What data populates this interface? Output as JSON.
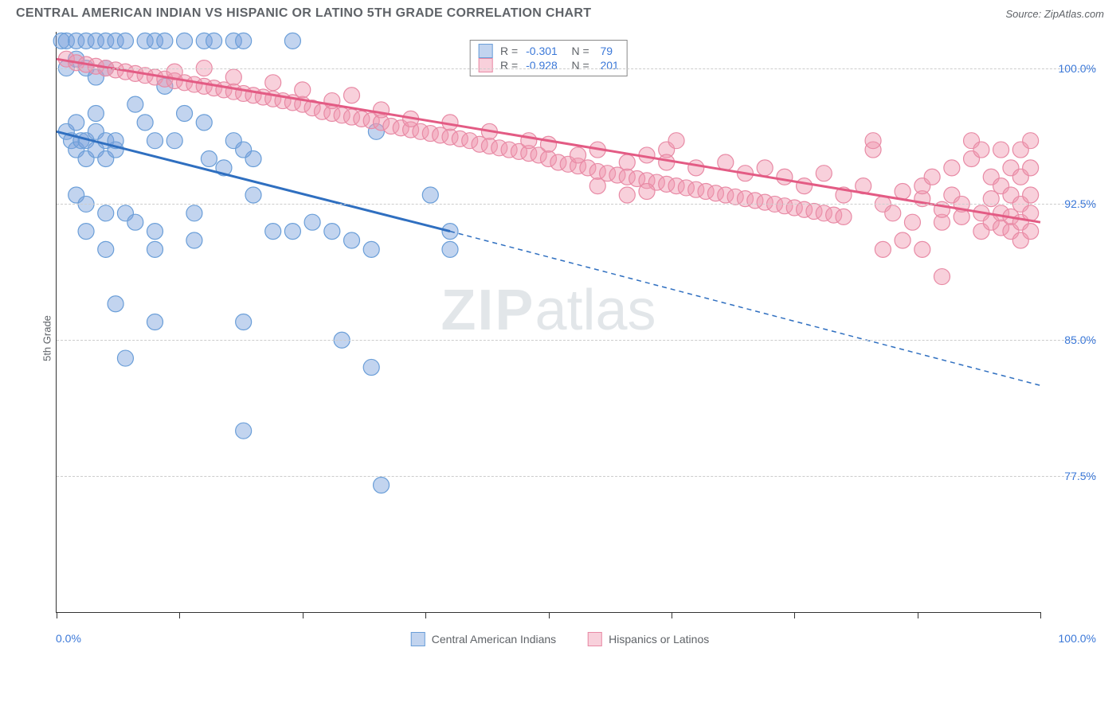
{
  "header": {
    "title": "CENTRAL AMERICAN INDIAN VS HISPANIC OR LATINO 5TH GRADE CORRELATION CHART",
    "source": "Source: ZipAtlas.com"
  },
  "chart": {
    "type": "scatter",
    "ylabel": "5th Grade",
    "xlim": [
      0,
      100
    ],
    "ylim": [
      70,
      102
    ],
    "xtick_positions": [
      0,
      12.5,
      25,
      37.5,
      50,
      62.5,
      75,
      87.5,
      100
    ],
    "xaxis_label_left": "0.0%",
    "xaxis_label_right": "100.0%",
    "yticks": [
      {
        "value": 100.0,
        "label": "100.0%"
      },
      {
        "value": 92.5,
        "label": "92.5%"
      },
      {
        "value": 85.0,
        "label": "85.0%"
      },
      {
        "value": 77.5,
        "label": "77.5%"
      }
    ],
    "grid_color": "#cccccc",
    "axis_color": "#333333",
    "background_color": "#ffffff",
    "watermark": {
      "text_bold": "ZIP",
      "text_light": "atlas"
    },
    "series": [
      {
        "name": "Central American Indians",
        "color_fill": "rgba(120,160,220,0.45)",
        "color_stroke": "#6a9ed8",
        "line_color": "#2f6fc0",
        "marker_radius": 10,
        "trend": {
          "x1": 0,
          "y1": 96.5,
          "x2": 40,
          "y2": 91.0,
          "x2_ext": 100,
          "y2_ext": 82.5
        },
        "points": [
          [
            0.5,
            101.5
          ],
          [
            1,
            101.5
          ],
          [
            2,
            101.5
          ],
          [
            3,
            101.5
          ],
          [
            4,
            101.5
          ],
          [
            5,
            101.5
          ],
          [
            6,
            101.5
          ],
          [
            7,
            101.5
          ],
          [
            9,
            101.5
          ],
          [
            10,
            101.5
          ],
          [
            11,
            101.5
          ],
          [
            13,
            101.5
          ],
          [
            15,
            101.5
          ],
          [
            16,
            101.5
          ],
          [
            18,
            101.5
          ],
          [
            19,
            101.5
          ],
          [
            24,
            101.5
          ],
          [
            1,
            96.5
          ],
          [
            1.5,
            96
          ],
          [
            2,
            95.5
          ],
          [
            2.5,
            96
          ],
          [
            3,
            95
          ],
          [
            3,
            96
          ],
          [
            4,
            95.5
          ],
          [
            4,
            96.5
          ],
          [
            5,
            96
          ],
          [
            5,
            95
          ],
          [
            6,
            95.5
          ],
          [
            6,
            96
          ],
          [
            2,
            97
          ],
          [
            4,
            97.5
          ],
          [
            1,
            100
          ],
          [
            2,
            100.5
          ],
          [
            3,
            100
          ],
          [
            4,
            99.5
          ],
          [
            5,
            100
          ],
          [
            8,
            98
          ],
          [
            9,
            97
          ],
          [
            10,
            96
          ],
          [
            11,
            99
          ],
          [
            12,
            96
          ],
          [
            13,
            97.5
          ],
          [
            15,
            97
          ],
          [
            15.5,
            95
          ],
          [
            17,
            94.5
          ],
          [
            18,
            96
          ],
          [
            20,
            95
          ],
          [
            2,
            93
          ],
          [
            3,
            92.5
          ],
          [
            5,
            92
          ],
          [
            7,
            92
          ],
          [
            8,
            91.5
          ],
          [
            10,
            91
          ],
          [
            14,
            92
          ],
          [
            19,
            95.5
          ],
          [
            20,
            93
          ],
          [
            5,
            90
          ],
          [
            10,
            90
          ],
          [
            14,
            90.5
          ],
          [
            22,
            91
          ],
          [
            24,
            91
          ],
          [
            26,
            91.5
          ],
          [
            28,
            91
          ],
          [
            30,
            90.5
          ],
          [
            32,
            90
          ],
          [
            32.5,
            96.5
          ],
          [
            3,
            91
          ],
          [
            38,
            93
          ],
          [
            40,
            90
          ],
          [
            40,
            91
          ],
          [
            6,
            87
          ],
          [
            10,
            86
          ],
          [
            19,
            86
          ],
          [
            7,
            84
          ],
          [
            29,
            85
          ],
          [
            32,
            83.5
          ],
          [
            19,
            80
          ],
          [
            33,
            77
          ]
        ]
      },
      {
        "name": "Hispanics or Latinos",
        "color_fill": "rgba(240,150,175,0.45)",
        "color_stroke": "#e88aa5",
        "line_color": "#e35b84",
        "marker_radius": 10,
        "trend": {
          "x1": 0,
          "y1": 100.5,
          "x2": 100,
          "y2": 91.5
        },
        "points": [
          [
            1,
            100.5
          ],
          [
            2,
            100.3
          ],
          [
            3,
            100.2
          ],
          [
            4,
            100.1
          ],
          [
            5,
            100
          ],
          [
            6,
            99.9
          ],
          [
            7,
            99.8
          ],
          [
            8,
            99.7
          ],
          [
            9,
            99.6
          ],
          [
            10,
            99.5
          ],
          [
            11,
            99.4
          ],
          [
            12,
            99.3
          ],
          [
            13,
            99.2
          ],
          [
            14,
            99.1
          ],
          [
            15,
            99
          ],
          [
            16,
            98.9
          ],
          [
            17,
            98.8
          ],
          [
            18,
            98.7
          ],
          [
            19,
            98.6
          ],
          [
            20,
            98.5
          ],
          [
            21,
            98.4
          ],
          [
            22,
            98.3
          ],
          [
            23,
            98.2
          ],
          [
            24,
            98.1
          ],
          [
            25,
            98
          ],
          [
            26,
            97.8
          ],
          [
            27,
            97.6
          ],
          [
            28,
            97.5
          ],
          [
            29,
            97.4
          ],
          [
            30,
            97.3
          ],
          [
            31,
            97.2
          ],
          [
            32,
            97.1
          ],
          [
            33,
            97
          ],
          [
            34,
            96.8
          ],
          [
            35,
            96.7
          ],
          [
            36,
            96.6
          ],
          [
            37,
            96.5
          ],
          [
            38,
            96.4
          ],
          [
            39,
            96.3
          ],
          [
            40,
            96.2
          ],
          [
            41,
            96.1
          ],
          [
            42,
            96
          ],
          [
            43,
            95.8
          ],
          [
            44,
            95.7
          ],
          [
            45,
            95.6
          ],
          [
            46,
            95.5
          ],
          [
            47,
            95.4
          ],
          [
            48,
            95.3
          ],
          [
            49,
            95.2
          ],
          [
            50,
            95
          ],
          [
            51,
            94.8
          ],
          [
            52,
            94.7
          ],
          [
            53,
            94.6
          ],
          [
            54,
            94.5
          ],
          [
            55,
            94.3
          ],
          [
            56,
            94.2
          ],
          [
            57,
            94.1
          ],
          [
            58,
            94
          ],
          [
            59,
            93.9
          ],
          [
            60,
            93.8
          ],
          [
            61,
            93.7
          ],
          [
            62,
            93.6
          ],
          [
            63,
            93.5
          ],
          [
            64,
            93.4
          ],
          [
            65,
            93.3
          ],
          [
            66,
            93.2
          ],
          [
            67,
            93.1
          ],
          [
            68,
            93
          ],
          [
            69,
            92.9
          ],
          [
            70,
            92.8
          ],
          [
            71,
            92.7
          ],
          [
            72,
            92.6
          ],
          [
            73,
            92.5
          ],
          [
            74,
            92.4
          ],
          [
            75,
            92.3
          ],
          [
            76,
            92.2
          ],
          [
            77,
            92.1
          ],
          [
            78,
            92
          ],
          [
            79,
            91.9
          ],
          [
            80,
            91.8
          ],
          [
            12,
            99.8
          ],
          [
            15,
            100
          ],
          [
            18,
            99.5
          ],
          [
            22,
            99.2
          ],
          [
            25,
            98.8
          ],
          [
            28,
            98.2
          ],
          [
            30,
            98.5
          ],
          [
            33,
            97.7
          ],
          [
            36,
            97.2
          ],
          [
            40,
            97
          ],
          [
            44,
            96.5
          ],
          [
            48,
            96
          ],
          [
            50,
            95.8
          ],
          [
            53,
            95.2
          ],
          [
            55,
            95.5
          ],
          [
            58,
            94.8
          ],
          [
            60,
            95.2
          ],
          [
            62,
            95.5
          ],
          [
            63,
            96
          ],
          [
            55,
            93.5
          ],
          [
            58,
            93
          ],
          [
            60,
            93.2
          ],
          [
            62,
            94.8
          ],
          [
            65,
            94.5
          ],
          [
            68,
            94.8
          ],
          [
            70,
            94.2
          ],
          [
            72,
            94.5
          ],
          [
            74,
            94
          ],
          [
            76,
            93.5
          ],
          [
            78,
            94.2
          ],
          [
            80,
            93
          ],
          [
            82,
            93.5
          ],
          [
            83,
            95.5
          ],
          [
            83,
            96
          ],
          [
            84,
            92.5
          ],
          [
            85,
            92
          ],
          [
            86,
            93.2
          ],
          [
            87,
            91.5
          ],
          [
            88,
            92.8
          ],
          [
            88,
            93.5
          ],
          [
            89,
            94
          ],
          [
            90,
            91.5
          ],
          [
            90,
            92.2
          ],
          [
            91,
            94.5
          ],
          [
            91,
            93
          ],
          [
            92,
            91.8
          ],
          [
            92,
            92.5
          ],
          [
            93,
            96
          ],
          [
            93,
            95
          ],
          [
            94,
            91
          ],
          [
            94,
            92
          ],
          [
            94,
            95.5
          ],
          [
            95,
            91.5
          ],
          [
            95,
            92.8
          ],
          [
            95,
            94
          ],
          [
            96,
            91.2
          ],
          [
            96,
            92
          ],
          [
            96,
            93.5
          ],
          [
            96,
            95.5
          ],
          [
            97,
            91
          ],
          [
            97,
            91.8
          ],
          [
            97,
            93
          ],
          [
            97,
            94.5
          ],
          [
            98,
            90.5
          ],
          [
            98,
            91.5
          ],
          [
            98,
            92.5
          ],
          [
            98,
            94
          ],
          [
            98,
            95.5
          ],
          [
            99,
            91
          ],
          [
            99,
            92
          ],
          [
            99,
            93
          ],
          [
            99,
            94.5
          ],
          [
            99,
            96
          ],
          [
            90,
            88.5
          ],
          [
            84,
            90
          ],
          [
            86,
            90.5
          ],
          [
            88,
            90
          ]
        ]
      }
    ],
    "stats": [
      {
        "swatch_fill": "rgba(120,160,220,0.45)",
        "swatch_stroke": "#6a9ed8",
        "r": "-0.301",
        "n": "79"
      },
      {
        "swatch_fill": "rgba(240,150,175,0.45)",
        "swatch_stroke": "#e88aa5",
        "r": "-0.928",
        "n": "201"
      }
    ],
    "legend": [
      {
        "swatch_fill": "rgba(120,160,220,0.45)",
        "swatch_stroke": "#6a9ed8",
        "label": "Central American Indians"
      },
      {
        "swatch_fill": "rgba(240,150,175,0.45)",
        "swatch_stroke": "#e88aa5",
        "label": "Hispanics or Latinos"
      }
    ]
  }
}
